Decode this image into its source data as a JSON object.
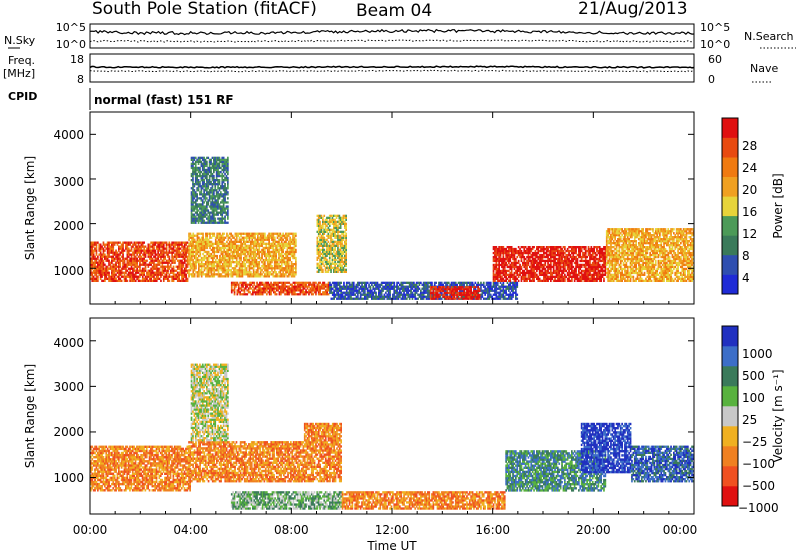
{
  "header": {
    "station": "South Pole Station (fitACF)",
    "beam": "Beam 04",
    "date": "21/Aug/2013"
  },
  "status_panels": {
    "nsky_label": "N.Sky",
    "nsky_ticks": [
      "10^5",
      "10^0"
    ],
    "nsearch_label": "N.Search",
    "nsearch_ticks": [
      "10^5",
      "10^0"
    ],
    "freq_label": "Freq.",
    "freq_unit": "[MHz]",
    "freq_ticks": [
      "18",
      "8"
    ],
    "nave_label": "Nave",
    "nave_ticks": [
      "60",
      "0"
    ],
    "cpid_label": "CPID",
    "cpid_text": "normal (fast) 151 RF"
  },
  "colors": {
    "power_scale": [
      "#1f2bd6",
      "#2f4fb0",
      "#3a7a5a",
      "#4c9a58",
      "#e7d43a",
      "#f0a020",
      "#f07a10",
      "#e84a10",
      "#e01010"
    ],
    "velocity_scale": [
      "#2030c0",
      "#3c6ec8",
      "#3a7a5a",
      "#58b23e",
      "#c8c8c8",
      "#f0b020",
      "#f08020",
      "#f05020",
      "#e01010"
    ],
    "axis": "#000000"
  },
  "chart_data": [
    {
      "type": "heatmap",
      "name": "power",
      "ylabel": "Slant Range [km]",
      "yticks": [
        "4000",
        "3000",
        "2000",
        "1000"
      ],
      "ylim": [
        200,
        4500
      ],
      "xlim": [
        0,
        24
      ],
      "colorbar_label": "Power [dB]",
      "colorbar_ticks": [
        "28",
        "24",
        "20",
        "16",
        "12",
        "8",
        "4"
      ],
      "colorbar_range": [
        0,
        32
      ],
      "regions": [
        {
          "t0": 0.0,
          "t1": 3.9,
          "r0": 700,
          "r1": 1600,
          "level": 7
        },
        {
          "t0": 3.9,
          "t1": 8.2,
          "r0": 800,
          "r1": 1800,
          "level": 5
        },
        {
          "t0": 5.6,
          "t1": 9.5,
          "r0": 400,
          "r1": 700,
          "level": 7
        },
        {
          "t0": 9.0,
          "t1": 10.2,
          "r0": 900,
          "r1": 2200,
          "level": 4
        },
        {
          "t0": 4.0,
          "t1": 5.5,
          "r0": 2000,
          "r1": 3500,
          "level": 2
        },
        {
          "t0": 9.5,
          "t1": 17.0,
          "r0": 300,
          "r1": 700,
          "level": 1
        },
        {
          "t0": 13.5,
          "t1": 15.5,
          "r0": 300,
          "r1": 600,
          "level": 8
        },
        {
          "t0": 16.0,
          "t1": 20.5,
          "r0": 700,
          "r1": 1500,
          "level": 8
        },
        {
          "t0": 20.5,
          "t1": 24.0,
          "r0": 700,
          "r1": 1900,
          "level": 5
        }
      ]
    },
    {
      "type": "heatmap",
      "name": "velocity",
      "ylabel": "Slant Range [km]",
      "yticks": [
        "4000",
        "3000",
        "2000",
        "1000"
      ],
      "ylim": [
        200,
        4500
      ],
      "xlim": [
        0,
        24
      ],
      "colorbar_label": "Velocity [m s⁻¹]",
      "colorbar_ticks": [
        "1000",
        "500",
        "100",
        "25",
        "−25",
        "−100",
        "−500",
        "−1000"
      ],
      "regions": [
        {
          "t0": 0.0,
          "t1": 4.0,
          "r0": 700,
          "r1": 1700,
          "level": 6
        },
        {
          "t0": 3.9,
          "t1": 8.5,
          "r0": 900,
          "r1": 1800,
          "level": 6
        },
        {
          "t0": 5.6,
          "t1": 10.0,
          "r0": 300,
          "r1": 700,
          "level": 3
        },
        {
          "t0": 4.0,
          "t1": 5.5,
          "r0": 1800,
          "r1": 3500,
          "level": 4
        },
        {
          "t0": 8.5,
          "t1": 10.0,
          "r0": 900,
          "r1": 2200,
          "level": 6
        },
        {
          "t0": 10.0,
          "t1": 16.5,
          "r0": 300,
          "r1": 700,
          "level": 6
        },
        {
          "t0": 16.5,
          "t1": 20.5,
          "r0": 700,
          "r1": 1600,
          "level": 2
        },
        {
          "t0": 19.5,
          "t1": 21.5,
          "r0": 1100,
          "r1": 2200,
          "level": 0
        },
        {
          "t0": 21.5,
          "t1": 24.0,
          "r0": 900,
          "r1": 1700,
          "level": 1
        }
      ]
    }
  ],
  "x_axis": {
    "ticks": [
      "00:00",
      "04:00",
      "08:00",
      "12:00",
      "16:00",
      "20:00",
      "00:00"
    ],
    "label": "Time UT"
  }
}
